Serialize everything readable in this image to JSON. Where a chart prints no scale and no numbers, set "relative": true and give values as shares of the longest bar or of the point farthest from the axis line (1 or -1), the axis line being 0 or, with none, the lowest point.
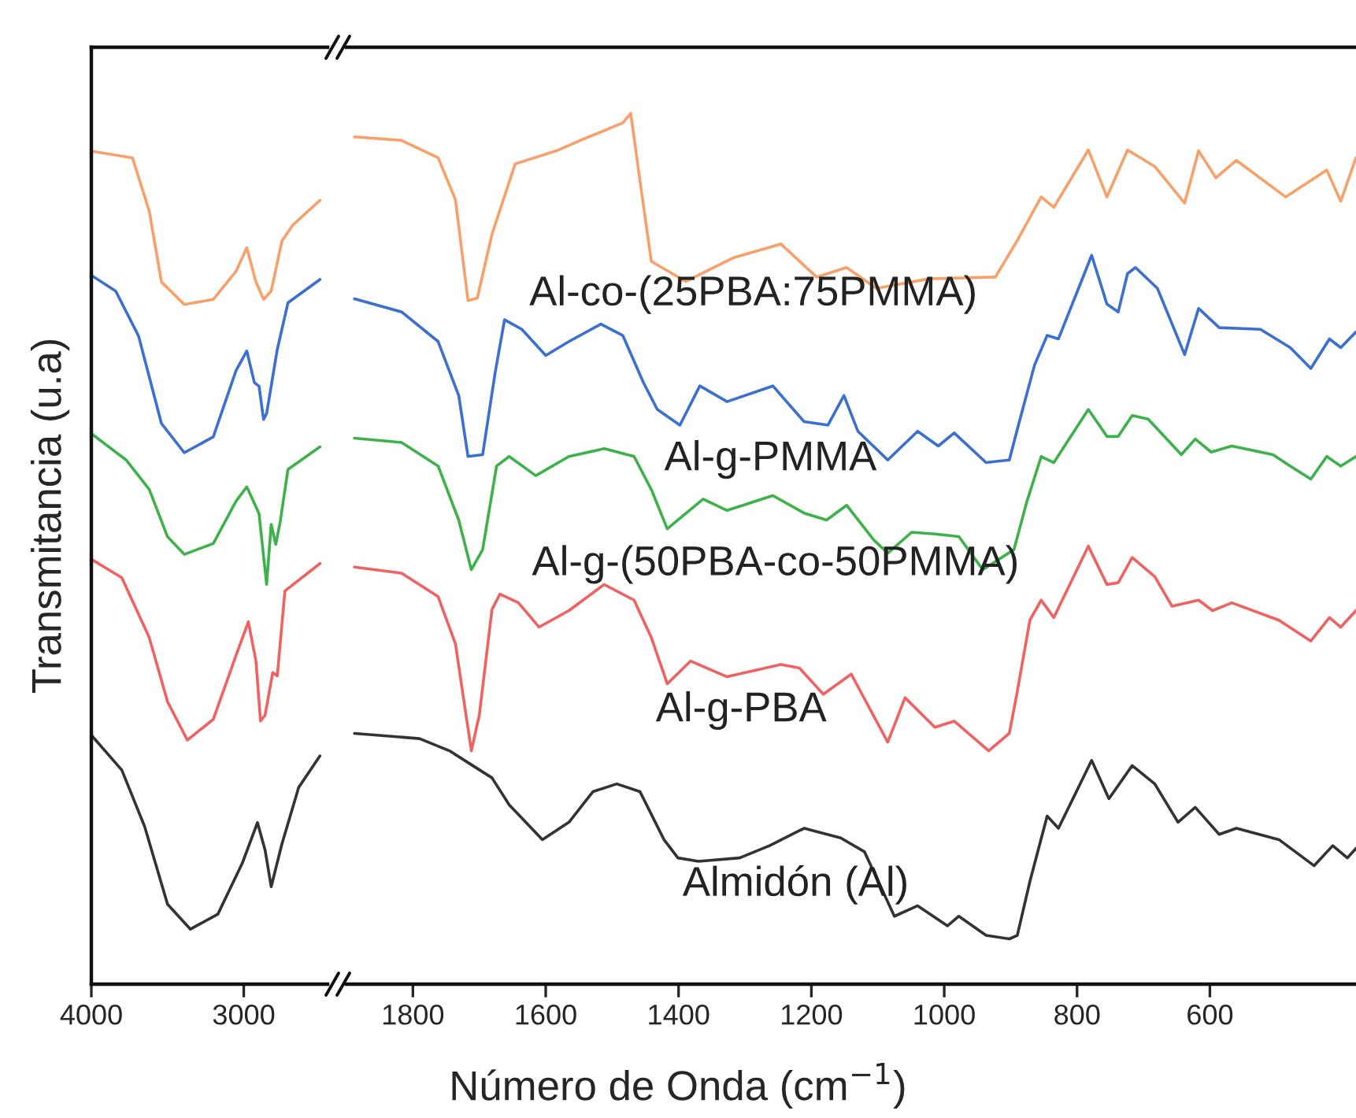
{
  "chart_data": [
    {
      "type": "line",
      "relative": true,
      "ylabel": "Transmitancia (u.a)",
      "tick_labels": "x",
      "xlim": [
        4000,
        2450
      ],
      "xticks": [
        4000,
        3000
      ],
      "series": [
        {
          "color": "#f7a06a",
          "x": [
            4000,
            3730,
            3620,
            3540,
            3390,
            3200,
            3050,
            2980,
            2920,
            2870,
            2820,
            2750,
            2680,
            2500
          ],
          "values": [
            1.0,
            0.992,
            0.928,
            0.843,
            0.816,
            0.822,
            0.856,
            0.884,
            0.843,
            0.822,
            0.832,
            0.892,
            0.911,
            0.941
          ]
        },
        {
          "color": "#3b6fd1",
          "x": [
            4000,
            3840,
            3690,
            3540,
            3390,
            3200,
            3050,
            2980,
            2930,
            2900,
            2870,
            2850,
            2780,
            2710,
            2500
          ],
          "values": [
            0.851,
            0.832,
            0.778,
            0.673,
            0.638,
            0.657,
            0.737,
            0.76,
            0.722,
            0.718,
            0.678,
            0.685,
            0.762,
            0.818,
            0.846
          ]
        },
        {
          "color": "#3db24b",
          "x": [
            4000,
            3770,
            3620,
            3500,
            3390,
            3200,
            3050,
            2980,
            2900,
            2850,
            2820,
            2790,
            2760,
            2710,
            2500
          ],
          "values": [
            0.661,
            0.629,
            0.594,
            0.537,
            0.516,
            0.529,
            0.58,
            0.597,
            0.565,
            0.48,
            0.552,
            0.528,
            0.556,
            0.618,
            0.645
          ]
        },
        {
          "color": "#f06262",
          "x": [
            4000,
            3800,
            3620,
            3500,
            3370,
            3200,
            3050,
            2970,
            2920,
            2890,
            2860,
            2810,
            2780,
            2730,
            2500
          ],
          "values": [
            0.51,
            0.488,
            0.416,
            0.339,
            0.293,
            0.318,
            0.395,
            0.435,
            0.388,
            0.316,
            0.323,
            0.374,
            0.37,
            0.472,
            0.505
          ]
        },
        {
          "color": "#333333",
          "x": [
            4000,
            3800,
            3650,
            3500,
            3350,
            3170,
            3010,
            2910,
            2860,
            2820,
            2750,
            2640,
            2500
          ],
          "values": [
            0.299,
            0.257,
            0.189,
            0.096,
            0.066,
            0.084,
            0.145,
            0.194,
            0.161,
            0.117,
            0.168,
            0.236,
            0.274
          ]
        }
      ]
    },
    {
      "type": "line",
      "relative": true,
      "xlabel": "Número de Onda (cm$^{−1}$)",
      "tick_labels": "x",
      "xlim": [
        1900,
        380
      ],
      "xticks": [
        1800,
        1600,
        1400,
        1200,
        1000,
        800,
        600
      ],
      "series": [
        {
          "name": "Al-co-(25PBA:75PMMA)",
          "color": "#f7a06a",
          "x": [
            1888,
            1817,
            1762,
            1736,
            1717,
            1703,
            1681,
            1646,
            1584,
            1548,
            1484,
            1472,
            1458,
            1441,
            1389,
            1318,
            1246,
            1192,
            1147,
            1102,
            1023,
            923,
            890,
            854,
            835,
            783,
            755,
            724,
            683,
            638,
            617,
            591,
            560,
            486,
            424,
            403,
            380
          ],
          "values": [
            0.973,
            0.969,
            0.949,
            0.901,
            0.785,
            0.788,
            0.861,
            0.942,
            0.957,
            0.969,
            0.989,
            1.0,
            0.922,
            0.83,
            0.807,
            0.834,
            0.85,
            0.812,
            0.823,
            0.799,
            0.81,
            0.812,
            0.854,
            0.904,
            0.892,
            0.958,
            0.904,
            0.958,
            0.939,
            0.897,
            0.957,
            0.926,
            0.946,
            0.904,
            0.935,
            0.899,
            0.949
          ]
        },
        {
          "name": "Al-g-PMMA",
          "color": "#3b6fd1",
          "x": [
            1888,
            1817,
            1762,
            1731,
            1717,
            1695,
            1676,
            1662,
            1636,
            1600,
            1565,
            1517,
            1484,
            1453,
            1432,
            1398,
            1368,
            1327,
            1258,
            1211,
            1175,
            1151,
            1130,
            1085,
            1040,
            1009,
            985,
            937,
            902,
            890,
            864,
            845,
            828,
            778,
            755,
            738,
            724,
            712,
            679,
            638,
            617,
            586,
            524,
            479,
            448,
            420,
            403,
            380
          ],
          "values": [
            0.787,
            0.772,
            0.738,
            0.676,
            0.606,
            0.608,
            0.703,
            0.763,
            0.752,
            0.722,
            0.738,
            0.758,
            0.745,
            0.691,
            0.66,
            0.642,
            0.687,
            0.669,
            0.687,
            0.646,
            0.642,
            0.676,
            0.635,
            0.602,
            0.635,
            0.618,
            0.633,
            0.599,
            0.602,
            0.637,
            0.711,
            0.745,
            0.741,
            0.837,
            0.781,
            0.772,
            0.816,
            0.823,
            0.799,
            0.723,
            0.776,
            0.754,
            0.752,
            0.731,
            0.707,
            0.741,
            0.731,
            0.749
          ]
        },
        {
          "name": "Al-g-(50PBA-co-50PMMA)",
          "color": "#3db24b",
          "x": [
            1888,
            1817,
            1762,
            1731,
            1712,
            1695,
            1674,
            1655,
            1615,
            1565,
            1512,
            1467,
            1441,
            1417,
            1363,
            1327,
            1258,
            1211,
            1177,
            1147,
            1106,
            1085,
            1049,
            1014,
            978,
            942,
            895,
            876,
            854,
            835,
            783,
            755,
            738,
            717,
            693,
            643,
            622,
            598,
            567,
            505,
            479,
            448,
            424,
            403,
            380
          ],
          "values": [
            0.627,
            0.622,
            0.595,
            0.533,
            0.476,
            0.499,
            0.595,
            0.606,
            0.584,
            0.606,
            0.615,
            0.606,
            0.568,
            0.523,
            0.557,
            0.544,
            0.561,
            0.541,
            0.533,
            0.55,
            0.51,
            0.495,
            0.519,
            0.517,
            0.514,
            0.476,
            0.499,
            0.553,
            0.606,
            0.599,
            0.66,
            0.629,
            0.629,
            0.653,
            0.649,
            0.608,
            0.626,
            0.611,
            0.618,
            0.608,
            0.595,
            0.58,
            0.606,
            0.595,
            0.606
          ]
        },
        {
          "name": "Al-g-PBA",
          "color": "#f06262",
          "x": [
            1888,
            1817,
            1762,
            1736,
            1712,
            1700,
            1681,
            1669,
            1641,
            1610,
            1565,
            1512,
            1467,
            1441,
            1417,
            1382,
            1327,
            1246,
            1218,
            1182,
            1140,
            1085,
            1059,
            1014,
            985,
            933,
            902,
            890,
            871,
            854,
            835,
            783,
            755,
            738,
            717,
            683,
            657,
            617,
            596,
            567,
            496,
            448,
            420,
            403,
            380
          ],
          "values": [
            0.479,
            0.472,
            0.445,
            0.391,
            0.268,
            0.309,
            0.43,
            0.448,
            0.438,
            0.41,
            0.429,
            0.459,
            0.441,
            0.398,
            0.345,
            0.371,
            0.353,
            0.367,
            0.363,
            0.333,
            0.356,
            0.278,
            0.329,
            0.295,
            0.302,
            0.268,
            0.288,
            0.336,
            0.418,
            0.441,
            0.421,
            0.503,
            0.459,
            0.461,
            0.49,
            0.468,
            0.434,
            0.441,
            0.429,
            0.438,
            0.418,
            0.394,
            0.421,
            0.41,
            0.429
          ]
        },
        {
          "name": "Almidón (Al)",
          "color": "#333333",
          "x": [
            1888,
            1790,
            1745,
            1710,
            1681,
            1655,
            1605,
            1565,
            1529,
            1493,
            1458,
            1422,
            1401,
            1370,
            1308,
            1263,
            1211,
            1156,
            1120,
            1075,
            1040,
            995,
            978,
            937,
            902,
            890,
            871,
            845,
            828,
            778,
            752,
            717,
            683,
            648,
            622,
            586,
            560,
            496,
            443,
            415,
            393,
            380
          ],
          "values": [
            0.288,
            0.282,
            0.268,
            0.251,
            0.237,
            0.206,
            0.166,
            0.186,
            0.221,
            0.23,
            0.221,
            0.166,
            0.145,
            0.141,
            0.145,
            0.159,
            0.179,
            0.168,
            0.152,
            0.078,
            0.09,
            0.067,
            0.078,
            0.056,
            0.052,
            0.056,
            0.118,
            0.193,
            0.179,
            0.257,
            0.213,
            0.251,
            0.23,
            0.186,
            0.203,
            0.172,
            0.179,
            0.166,
            0.136,
            0.159,
            0.145,
            0.156
          ]
        }
      ]
    }
  ]
}
